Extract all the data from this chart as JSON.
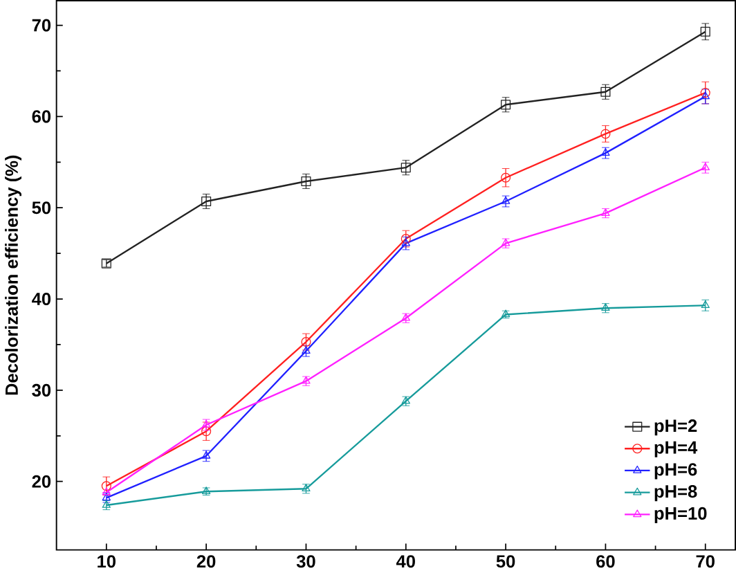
{
  "chart_data": {
    "type": "line",
    "ylabel": "Decolorization efficiency (%)",
    "x": [
      10,
      20,
      30,
      40,
      50,
      60,
      70
    ],
    "xlim": [
      5,
      73
    ],
    "ylim": [
      12.5,
      72.7
    ],
    "xticks": [
      10,
      20,
      30,
      40,
      50,
      60,
      70
    ],
    "yticks": [
      20,
      30,
      40,
      50,
      60,
      70
    ],
    "grid": false,
    "legend": "bottom right",
    "line_style": "solid",
    "series": [
      {
        "name": "pH=2",
        "color": "#222222",
        "marker": "square",
        "values": [
          43.9,
          50.7,
          52.9,
          54.4,
          61.3,
          62.7,
          69.3
        ],
        "errors": [
          0.4,
          0.8,
          0.8,
          0.8,
          0.8,
          0.8,
          0.9
        ]
      },
      {
        "name": "pH=4",
        "color": "#ff2020",
        "marker": "circle",
        "values": [
          19.5,
          25.5,
          35.3,
          46.6,
          53.3,
          58.1,
          62.6
        ],
        "errors": [
          1.0,
          1.0,
          0.9,
          0.9,
          1.0,
          0.9,
          1.2
        ]
      },
      {
        "name": "pH=6",
        "color": "#2020ff",
        "marker": "triangle",
        "values": [
          18.2,
          22.8,
          34.3,
          46.1,
          50.7,
          56.0,
          62.2
        ],
        "errors": [
          0.5,
          0.6,
          0.6,
          0.7,
          0.6,
          0.6,
          0.8
        ]
      },
      {
        "name": "pH=8",
        "color": "#169b9b",
        "marker": "triangle",
        "values": [
          17.4,
          18.9,
          19.2,
          28.8,
          38.3,
          39.0,
          39.3
        ],
        "errors": [
          0.5,
          0.4,
          0.5,
          0.5,
          0.4,
          0.5,
          0.6
        ]
      },
      {
        "name": "pH=10",
        "color": "#ff20ff",
        "marker": "triangle",
        "values": [
          18.8,
          26.2,
          31.0,
          37.9,
          46.1,
          49.4,
          54.4
        ],
        "errors": [
          null,
          0.6,
          0.5,
          0.5,
          0.5,
          0.5,
          0.6
        ]
      }
    ]
  }
}
